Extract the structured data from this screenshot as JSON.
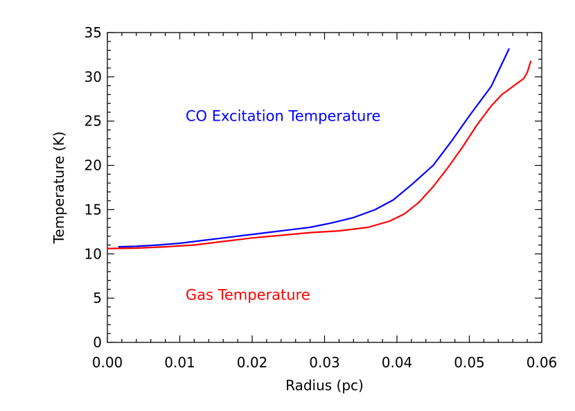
{
  "chart_data": {
    "type": "line",
    "title": "",
    "xlabel": "Radius (pc)",
    "ylabel": "Temperature (K)",
    "xlim": [
      0.0,
      0.06
    ],
    "ylim": [
      0,
      35
    ],
    "x_ticks": [
      "0.00",
      "0.01",
      "0.02",
      "0.03",
      "0.04",
      "0.05",
      "0.06"
    ],
    "y_ticks": [
      "0",
      "5",
      "10",
      "15",
      "20",
      "25",
      "30",
      "35"
    ],
    "grid": false,
    "series": [
      {
        "name": "CO Excitation Temperature",
        "color": "#0000ff",
        "x": [
          0.0015,
          0.004,
          0.007,
          0.01,
          0.013,
          0.016,
          0.019,
          0.022,
          0.025,
          0.028,
          0.031,
          0.034,
          0.037,
          0.0395,
          0.042,
          0.045,
          0.0475,
          0.05,
          0.053,
          0.0555
        ],
        "y": [
          10.8,
          10.85,
          11.0,
          11.2,
          11.5,
          11.8,
          12.1,
          12.4,
          12.7,
          13.0,
          13.5,
          14.1,
          15.0,
          16.1,
          17.8,
          20.0,
          22.7,
          25.6,
          28.9,
          33.2
        ]
      },
      {
        "name": "Gas Temperature",
        "color": "#ff0000",
        "x": [
          0.0,
          0.004,
          0.008,
          0.012,
          0.016,
          0.02,
          0.024,
          0.028,
          0.032,
          0.036,
          0.039,
          0.041,
          0.043,
          0.045,
          0.047,
          0.049,
          0.051,
          0.053,
          0.0545,
          0.056,
          0.0575,
          0.058,
          0.0585
        ],
        "y": [
          10.6,
          10.65,
          10.8,
          11.0,
          11.4,
          11.8,
          12.1,
          12.4,
          12.6,
          13.0,
          13.7,
          14.5,
          15.8,
          17.6,
          19.7,
          22.0,
          24.5,
          26.7,
          28.0,
          28.9,
          29.8,
          30.5,
          31.8
        ]
      }
    ],
    "annotations": [
      {
        "text": "CO Excitation Temperature",
        "color": "#0000ff",
        "x": 0.0108,
        "y": 25.0
      },
      {
        "text": "Gas Temperature",
        "color": "#ff0000",
        "x": 0.0108,
        "y": 4.8
      }
    ]
  }
}
